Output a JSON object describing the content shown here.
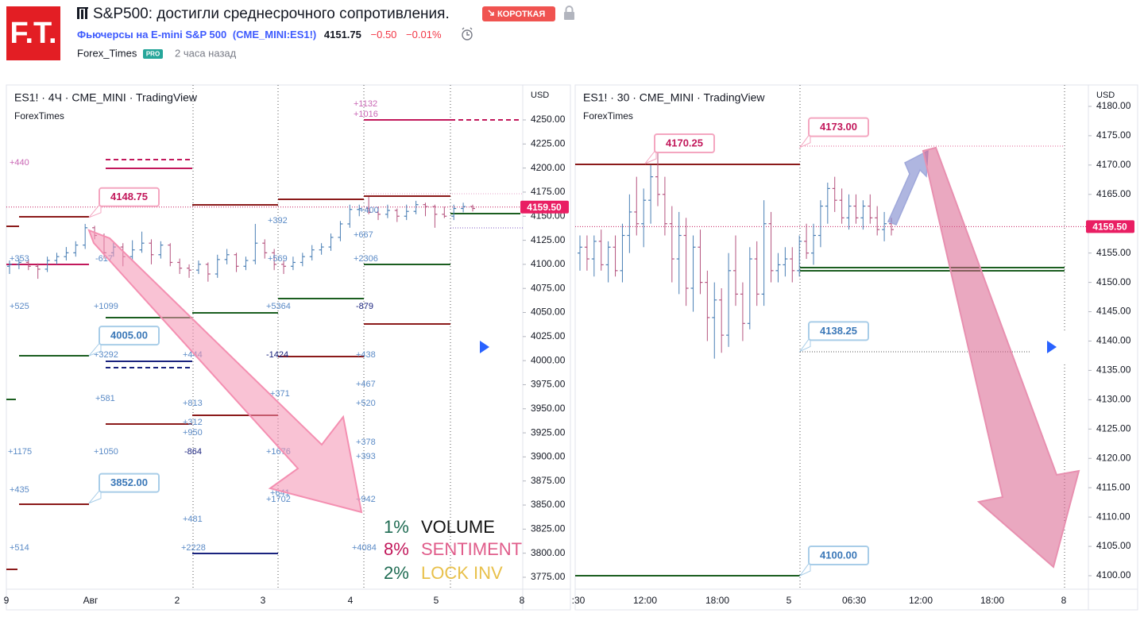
{
  "header": {
    "logo": "F.T.",
    "title": "S&P500: достигли среднесрочного сопротивления.",
    "badge": "КОРОТКАЯ",
    "symbol_name": "Фьючерсы на E-mini S&P 500",
    "symbol_code": "(CME_MINI:ES1!)",
    "price": "4151.75",
    "change": "−0.50",
    "change_pct": "−0.01%",
    "author": "Forex_Times",
    "author_badge": "PRO",
    "time": "2 часа назад"
  },
  "panels": [
    {
      "title": "ES1! · 4Ч · CME_MINI · TradingView",
      "author": "ForexTimes",
      "currency": "USD",
      "up_color": "#4a7fb5",
      "down_color": "#b5547f",
      "ylim": [
        3762.6,
        4286.3
      ],
      "yticks": [
        {
          "value": 3775,
          "label": "3775.00"
        },
        {
          "value": 3800,
          "label": "3800.00"
        },
        {
          "value": 3825,
          "label": "3825.00"
        },
        {
          "value": 3850,
          "label": "3850.00"
        },
        {
          "value": 3875,
          "label": "3875.00"
        },
        {
          "value": 3900,
          "label": "3900.00"
        },
        {
          "value": 3925,
          "label": "3925.00"
        },
        {
          "value": 3950,
          "label": "3950.00"
        },
        {
          "value": 3975,
          "label": "3975.00"
        },
        {
          "value": 4000,
          "label": "4000.00"
        },
        {
          "value": 4025,
          "label": "4025.00"
        },
        {
          "value": 4050,
          "label": "4050.00"
        },
        {
          "value": 4075,
          "label": "4075.00"
        },
        {
          "value": 4100,
          "label": "4100.00"
        },
        {
          "value": 4125,
          "label": "4125.00"
        },
        {
          "value": 4150,
          "label": "4150.00"
        },
        {
          "value": 4175,
          "label": "4175.00"
        },
        {
          "value": 4200,
          "label": "4200.00"
        },
        {
          "value": 4225,
          "label": "4225.00"
        },
        {
          "value": 4250,
          "label": "4250.00"
        }
      ],
      "xlabels": [
        "9",
        "Авг",
        "2",
        "3",
        "4",
        "5",
        "8"
      ],
      "candles": [
        [
          4098,
          4104,
          4090,
          4100
        ],
        [
          4100,
          4106,
          4095,
          4102
        ],
        [
          4102,
          4105,
          4094,
          4098
        ],
        [
          4098,
          4101,
          4085,
          4095
        ],
        [
          4095,
          4108,
          4092,
          4104
        ],
        [
          4104,
          4112,
          4100,
          4108
        ],
        [
          4108,
          4118,
          4104,
          4112
        ],
        [
          4112,
          4124,
          4108,
          4120
        ],
        [
          4120,
          4142,
          4116,
          4138
        ],
        [
          4138,
          4140,
          4126,
          4130
        ],
        [
          4130,
          4132,
          4106,
          4112
        ],
        [
          4112,
          4124,
          4108,
          4118
        ],
        [
          4118,
          4122,
          4098,
          4108
        ],
        [
          4108,
          4125,
          4104,
          4115
        ],
        [
          4115,
          4134,
          4112,
          4122
        ],
        [
          4122,
          4126,
          4100,
          4110
        ],
        [
          4110,
          4124,
          4106,
          4120
        ],
        [
          4120,
          4122,
          4098,
          4102
        ],
        [
          4102,
          4106,
          4090,
          4096
        ],
        [
          4096,
          4100,
          4086,
          4094
        ],
        [
          4094,
          4104,
          4090,
          4100
        ],
        [
          4100,
          4102,
          4082,
          4090
        ],
        [
          4090,
          4110,
          4086,
          4105
        ],
        [
          4105,
          4116,
          4100,
          4110
        ],
        [
          4110,
          4112,
          4092,
          4098
        ],
        [
          4098,
          4108,
          4094,
          4104
        ],
        [
          4104,
          4142,
          4100,
          4122
        ],
        [
          4122,
          4126,
          4106,
          4112
        ],
        [
          4112,
          4116,
          4094,
          4100
        ],
        [
          4100,
          4104,
          4090,
          4098
        ],
        [
          4098,
          4108,
          4094,
          4102
        ],
        [
          4102,
          4112,
          4098,
          4108
        ],
        [
          4108,
          4120,
          4104,
          4115
        ],
        [
          4115,
          4122,
          4110,
          4118
        ],
        [
          4118,
          4132,
          4114,
          4128
        ],
        [
          4128,
          4145,
          4124,
          4142
        ],
        [
          4142,
          4162,
          4138,
          4157
        ],
        [
          4157,
          4162,
          4150,
          4158
        ],
        [
          4158,
          4170,
          4152,
          4154
        ],
        [
          4154,
          4160,
          4146,
          4152
        ],
        [
          4152,
          4162,
          4148,
          4156
        ],
        [
          4156,
          4158,
          4144,
          4150
        ],
        [
          4150,
          4162,
          4146,
          4155
        ],
        [
          4155,
          4166,
          4152,
          4162
        ],
        [
          4162,
          4164,
          4150,
          4160
        ],
        [
          4160,
          4162,
          4138,
          4152
        ],
        [
          4152,
          4160,
          4148,
          4150
        ],
        [
          4150,
          4162,
          4146,
          4158
        ],
        [
          4158,
          4164,
          4154,
          4160
        ],
        [
          4160,
          4162,
          4155,
          4158
        ]
      ],
      "price_tag": {
        "value": 4159.5,
        "label": "4159.50"
      },
      "callouts": [
        {
          "value": 4148.75,
          "label": "4148.75"
        },
        {
          "value": 4005,
          "label": "4005.00"
        },
        {
          "value": 3852,
          "label": "3852.00"
        }
      ],
      "level_labels": [
        "+1132",
        "+1016",
        "+440",
        "+392",
        "+400",
        "+667",
        "+353",
        "-617",
        "+569",
        "+2306",
        "+525",
        "+1099",
        "+5364",
        "-879",
        "+3292",
        "+444",
        "-1424",
        "+438",
        "+467",
        "+581",
        "+371",
        "+813",
        "+520",
        "+312",
        "+950",
        "+378",
        "+1175",
        "+1050",
        "-864",
        "+1676",
        "+393",
        "+435",
        "+641",
        "+1702",
        "+942",
        "+481",
        "+514",
        "+2228",
        "+4084"
      ]
    },
    {
      "title": "ES1! · 30 · CME_MINI · TradingView",
      "author": "ForexTimes",
      "currency": "USD",
      "up_color": "#4a7fb5",
      "down_color": "#b5547f",
      "ylim": [
        4097.7,
        4183.65
      ],
      "yticks": [
        {
          "value": 4100,
          "label": "4100.00"
        },
        {
          "value": 4105,
          "label": "4105.00"
        },
        {
          "value": 4110,
          "label": "4110.00"
        },
        {
          "value": 4115,
          "label": "4115.00"
        },
        {
          "value": 4120,
          "label": "4120.00"
        },
        {
          "value": 4125,
          "label": "4125.00"
        },
        {
          "value": 4130,
          "label": "4130.00"
        },
        {
          "value": 4135,
          "label": "4135.00"
        },
        {
          "value": 4140,
          "label": "4140.00"
        },
        {
          "value": 4145,
          "label": "4145.00"
        },
        {
          "value": 4150,
          "label": "4150.00"
        },
        {
          "value": 4155,
          "label": "4155.00"
        },
        {
          "value": 4165,
          "label": "4165.00"
        },
        {
          "value": 4170,
          "label": "4170.00"
        },
        {
          "value": 4175,
          "label": "4175.00"
        },
        {
          "value": 4180,
          "label": "4180.00"
        }
      ],
      "xlabels": [
        ":30",
        "12:00",
        "18:00",
        "5",
        "06:30",
        "12:00",
        "18:00",
        "8"
      ],
      "candles": [
        [
          4155,
          4158,
          4152,
          4156
        ],
        [
          4156,
          4158,
          4152,
          4154
        ],
        [
          4154,
          4158,
          4151,
          4157
        ],
        [
          4157,
          4159,
          4152,
          4153
        ],
        [
          4153,
          4157,
          4150,
          4156
        ],
        [
          4156,
          4158,
          4151,
          4152
        ],
        [
          4152,
          4160,
          4150,
          4158
        ],
        [
          4158,
          4165,
          4155,
          4162
        ],
        [
          4162,
          4168,
          4158,
          4160
        ],
        [
          4160,
          4166,
          4156,
          4164
        ],
        [
          4164,
          4170,
          4160,
          4168
        ],
        [
          4168,
          4173,
          4163,
          4165
        ],
        [
          4165,
          4168,
          4158,
          4160
        ],
        [
          4160,
          4163,
          4150,
          4154
        ],
        [
          4154,
          4162,
          4148,
          4158
        ],
        [
          4158,
          4161,
          4146,
          4149
        ],
        [
          4149,
          4158,
          4145,
          4156
        ],
        [
          4156,
          4159,
          4148,
          4150
        ],
        [
          4150,
          4152,
          4140,
          4144
        ],
        [
          4144,
          4150,
          4137,
          4147
        ],
        [
          4147,
          4149,
          4138,
          4141
        ],
        [
          4141,
          4155,
          4139,
          4152
        ],
        [
          4152,
          4158,
          4146,
          4148
        ],
        [
          4148,
          4150,
          4140,
          4143
        ],
        [
          4143,
          4156,
          4142,
          4154
        ],
        [
          4154,
          4157,
          4146,
          4148
        ],
        [
          4148,
          4164,
          4146,
          4160
        ],
        [
          4160,
          4162,
          4150,
          4152
        ],
        [
          4152,
          4155,
          4150,
          4153
        ],
        [
          4153,
          4156,
          4151,
          4154
        ],
        [
          4154,
          4156,
          4150,
          4152
        ],
        [
          4152,
          4158,
          4151,
          4157
        ],
        [
          4157,
          4160,
          4154,
          4155
        ],
        [
          4155,
          4160,
          4153,
          4158
        ],
        [
          4158,
          4164,
          4156,
          4163
        ],
        [
          4163,
          4167,
          4160,
          4166
        ],
        [
          4166,
          4168,
          4162,
          4164
        ],
        [
          4164,
          4166,
          4160,
          4161
        ],
        [
          4161,
          4165,
          4159,
          4163
        ],
        [
          4163,
          4165,
          4160,
          4161
        ],
        [
          4161,
          4164,
          4159,
          4163
        ],
        [
          4163,
          4165,
          4160,
          4161
        ],
        [
          4161,
          4163,
          4158,
          4159
        ],
        [
          4159,
          4162,
          4157,
          4160
        ],
        [
          4160,
          4161,
          4158,
          4159
        ]
      ],
      "price_tag": {
        "value": 4159.5,
        "label": "4159.50"
      },
      "callouts": [
        {
          "value": 4170.25,
          "label": "4170.25"
        },
        {
          "value": 4173,
          "label": "4173.00"
        },
        {
          "value": 4138.25,
          "label": "4138.25"
        },
        {
          "value": 4100,
          "label": "4100.00"
        }
      ]
    }
  ],
  "stats": [
    {
      "pct": "1%",
      "name": "VOLUME"
    },
    {
      "pct": "8%",
      "name": "SENTIMENT"
    },
    {
      "pct": "2%",
      "name": "LOCK INV"
    }
  ]
}
